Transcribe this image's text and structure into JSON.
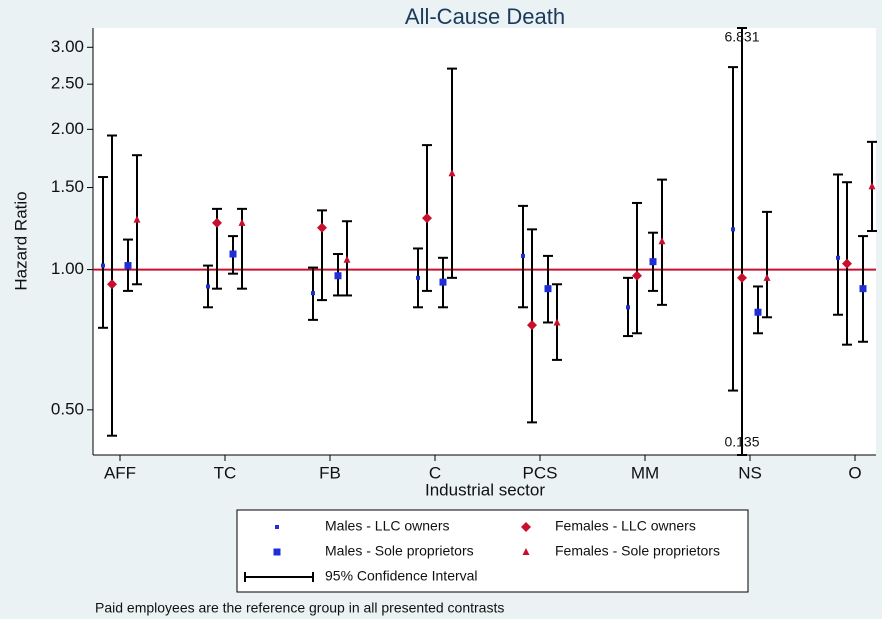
{
  "chart_data": {
    "type": "forest",
    "title": "All-Cause Death",
    "ylabel": "Hazard Ratio",
    "xlabel": "Industrial sector",
    "note": "Paid employees are the reference group in all presented contrasts",
    "ci_label": "95% Confidence Interval",
    "categories": [
      "AFF",
      "TC",
      "FB",
      "C",
      "PCS",
      "MM",
      "NS",
      "O"
    ],
    "log_y": true,
    "ylim": [
      0.4,
      3.3
    ],
    "yticks": [
      {
        "value": 0.5,
        "label": "0.50"
      },
      {
        "value": 1,
        "label": "1.00"
      },
      {
        "value": 1.5,
        "label": "1.50"
      },
      {
        "value": 2,
        "label": "2.00"
      },
      {
        "value": 2.5,
        "label": "2.50"
      },
      {
        "value": 3,
        "label": "3.00"
      }
    ],
    "reference_line": 1,
    "reference_color": "#c8102e",
    "series": [
      {
        "name": "Males - LLC owners",
        "color": "#1f2fd8",
        "marker": "small-square",
        "values": [
          1.02,
          0.92,
          0.89,
          0.96,
          1.07,
          0.83,
          1.22,
          1.06
        ],
        "lower": [
          0.75,
          0.83,
          0.78,
          0.83,
          0.83,
          0.72,
          0.55,
          0.8
        ],
        "upper": [
          1.58,
          1.02,
          1.01,
          1.11,
          1.37,
          0.96,
          2.72,
          1.6
        ]
      },
      {
        "name": "Females - LLC owners",
        "color": "#c8102e",
        "marker": "diamond",
        "values": [
          0.93,
          1.26,
          1.23,
          1.29,
          0.76,
          0.97,
          0.96,
          1.03
        ],
        "lower": [
          0.44,
          0.91,
          0.86,
          0.9,
          0.47,
          0.73,
          0.135,
          0.69
        ],
        "upper": [
          1.94,
          1.35,
          1.34,
          1.85,
          1.22,
          1.39,
          6.831,
          1.54
        ]
      },
      {
        "name": "Males - Sole proprietors",
        "color": "#1f2fd8",
        "marker": "square",
        "values": [
          1.02,
          1.08,
          0.97,
          0.94,
          0.91,
          1.04,
          0.81,
          0.91
        ],
        "lower": [
          0.9,
          0.98,
          0.88,
          0.83,
          0.77,
          0.9,
          0.73,
          0.7
        ],
        "upper": [
          1.16,
          1.18,
          1.08,
          1.06,
          1.07,
          1.2,
          0.92,
          1.18
        ]
      },
      {
        "name": "Females - Sole proprietors",
        "color": "#c8102e",
        "marker": "triangle",
        "values": [
          1.28,
          1.26,
          1.05,
          1.61,
          0.77,
          1.15,
          0.96,
          1.51
        ],
        "lower": [
          0.93,
          0.91,
          0.88,
          0.96,
          0.64,
          0.84,
          0.79,
          1.21
        ],
        "upper": [
          1.76,
          1.35,
          1.27,
          2.7,
          0.93,
          1.56,
          1.33,
          1.88
        ]
      }
    ]
  }
}
